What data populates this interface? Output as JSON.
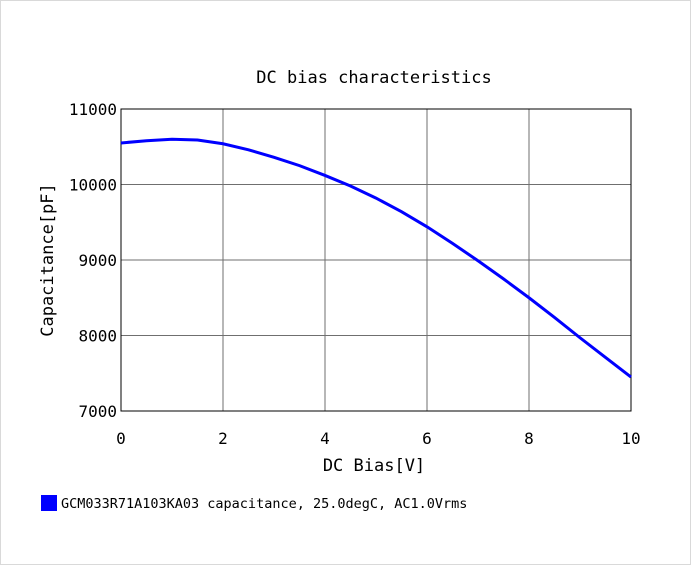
{
  "chart_data": {
    "type": "line",
    "title": "DC bias characteristics",
    "xlabel": "DC Bias[V]",
    "ylabel": "Capacitance[pF]",
    "xlim": [
      0,
      10
    ],
    "ylim": [
      7000,
      11000
    ],
    "xticks": [
      "0",
      "2",
      "4",
      "6",
      "8",
      "10"
    ],
    "yticks": [
      "7000",
      "8000",
      "9000",
      "10000",
      "11000"
    ],
    "grid": true,
    "legend_position": "bottom-left",
    "series": [
      {
        "name": "GCM033R71A103KA03 capacitance, 25.0degC, AC1.0Vrms",
        "color": "#0000ff",
        "x": [
          0,
          0.5,
          1,
          1.5,
          2,
          2.5,
          3,
          3.5,
          4,
          4.5,
          5,
          5.5,
          6,
          6.5,
          7,
          7.5,
          8,
          8.5,
          9,
          9.5,
          10
        ],
        "y": [
          10550,
          10580,
          10600,
          10590,
          10540,
          10460,
          10360,
          10250,
          10120,
          9980,
          9820,
          9640,
          9440,
          9220,
          8990,
          8750,
          8500,
          8240,
          7970,
          7710,
          7450
        ]
      }
    ]
  }
}
